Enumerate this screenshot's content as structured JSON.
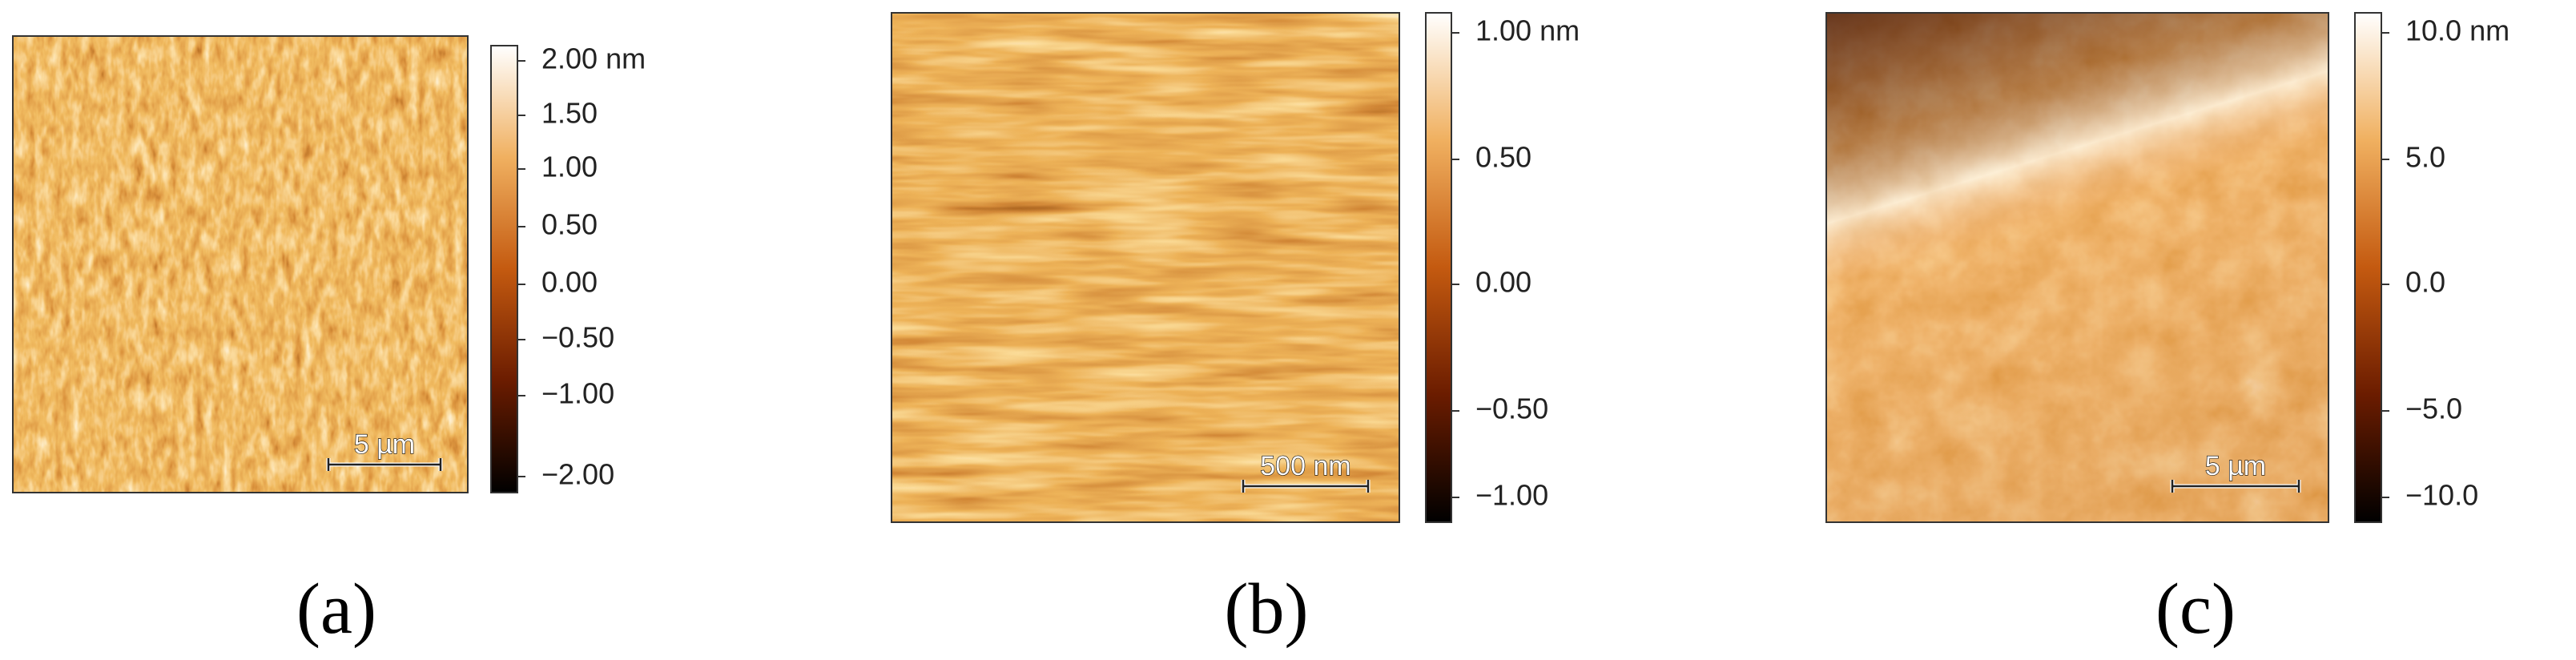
{
  "panels": [
    {
      "label": "(a)",
      "scale_bar": "5 µm",
      "colorbar_ticks": [
        "2.00 nm",
        "1.50",
        "1.00",
        "0.50",
        "0.00",
        "−0.50",
        "−1.00",
        "−2.00"
      ]
    },
    {
      "label": "(b)",
      "scale_bar": "500 nm",
      "colorbar_ticks": [
        "1.00 nm",
        "0.50",
        "0.00",
        "−0.50",
        "−1.00"
      ]
    },
    {
      "label": "(c)",
      "scale_bar": "5 µm",
      "colorbar_ticks": [
        "10.0 nm",
        "5.0",
        "0.0",
        "−5.0",
        "−10.0"
      ]
    }
  ]
}
